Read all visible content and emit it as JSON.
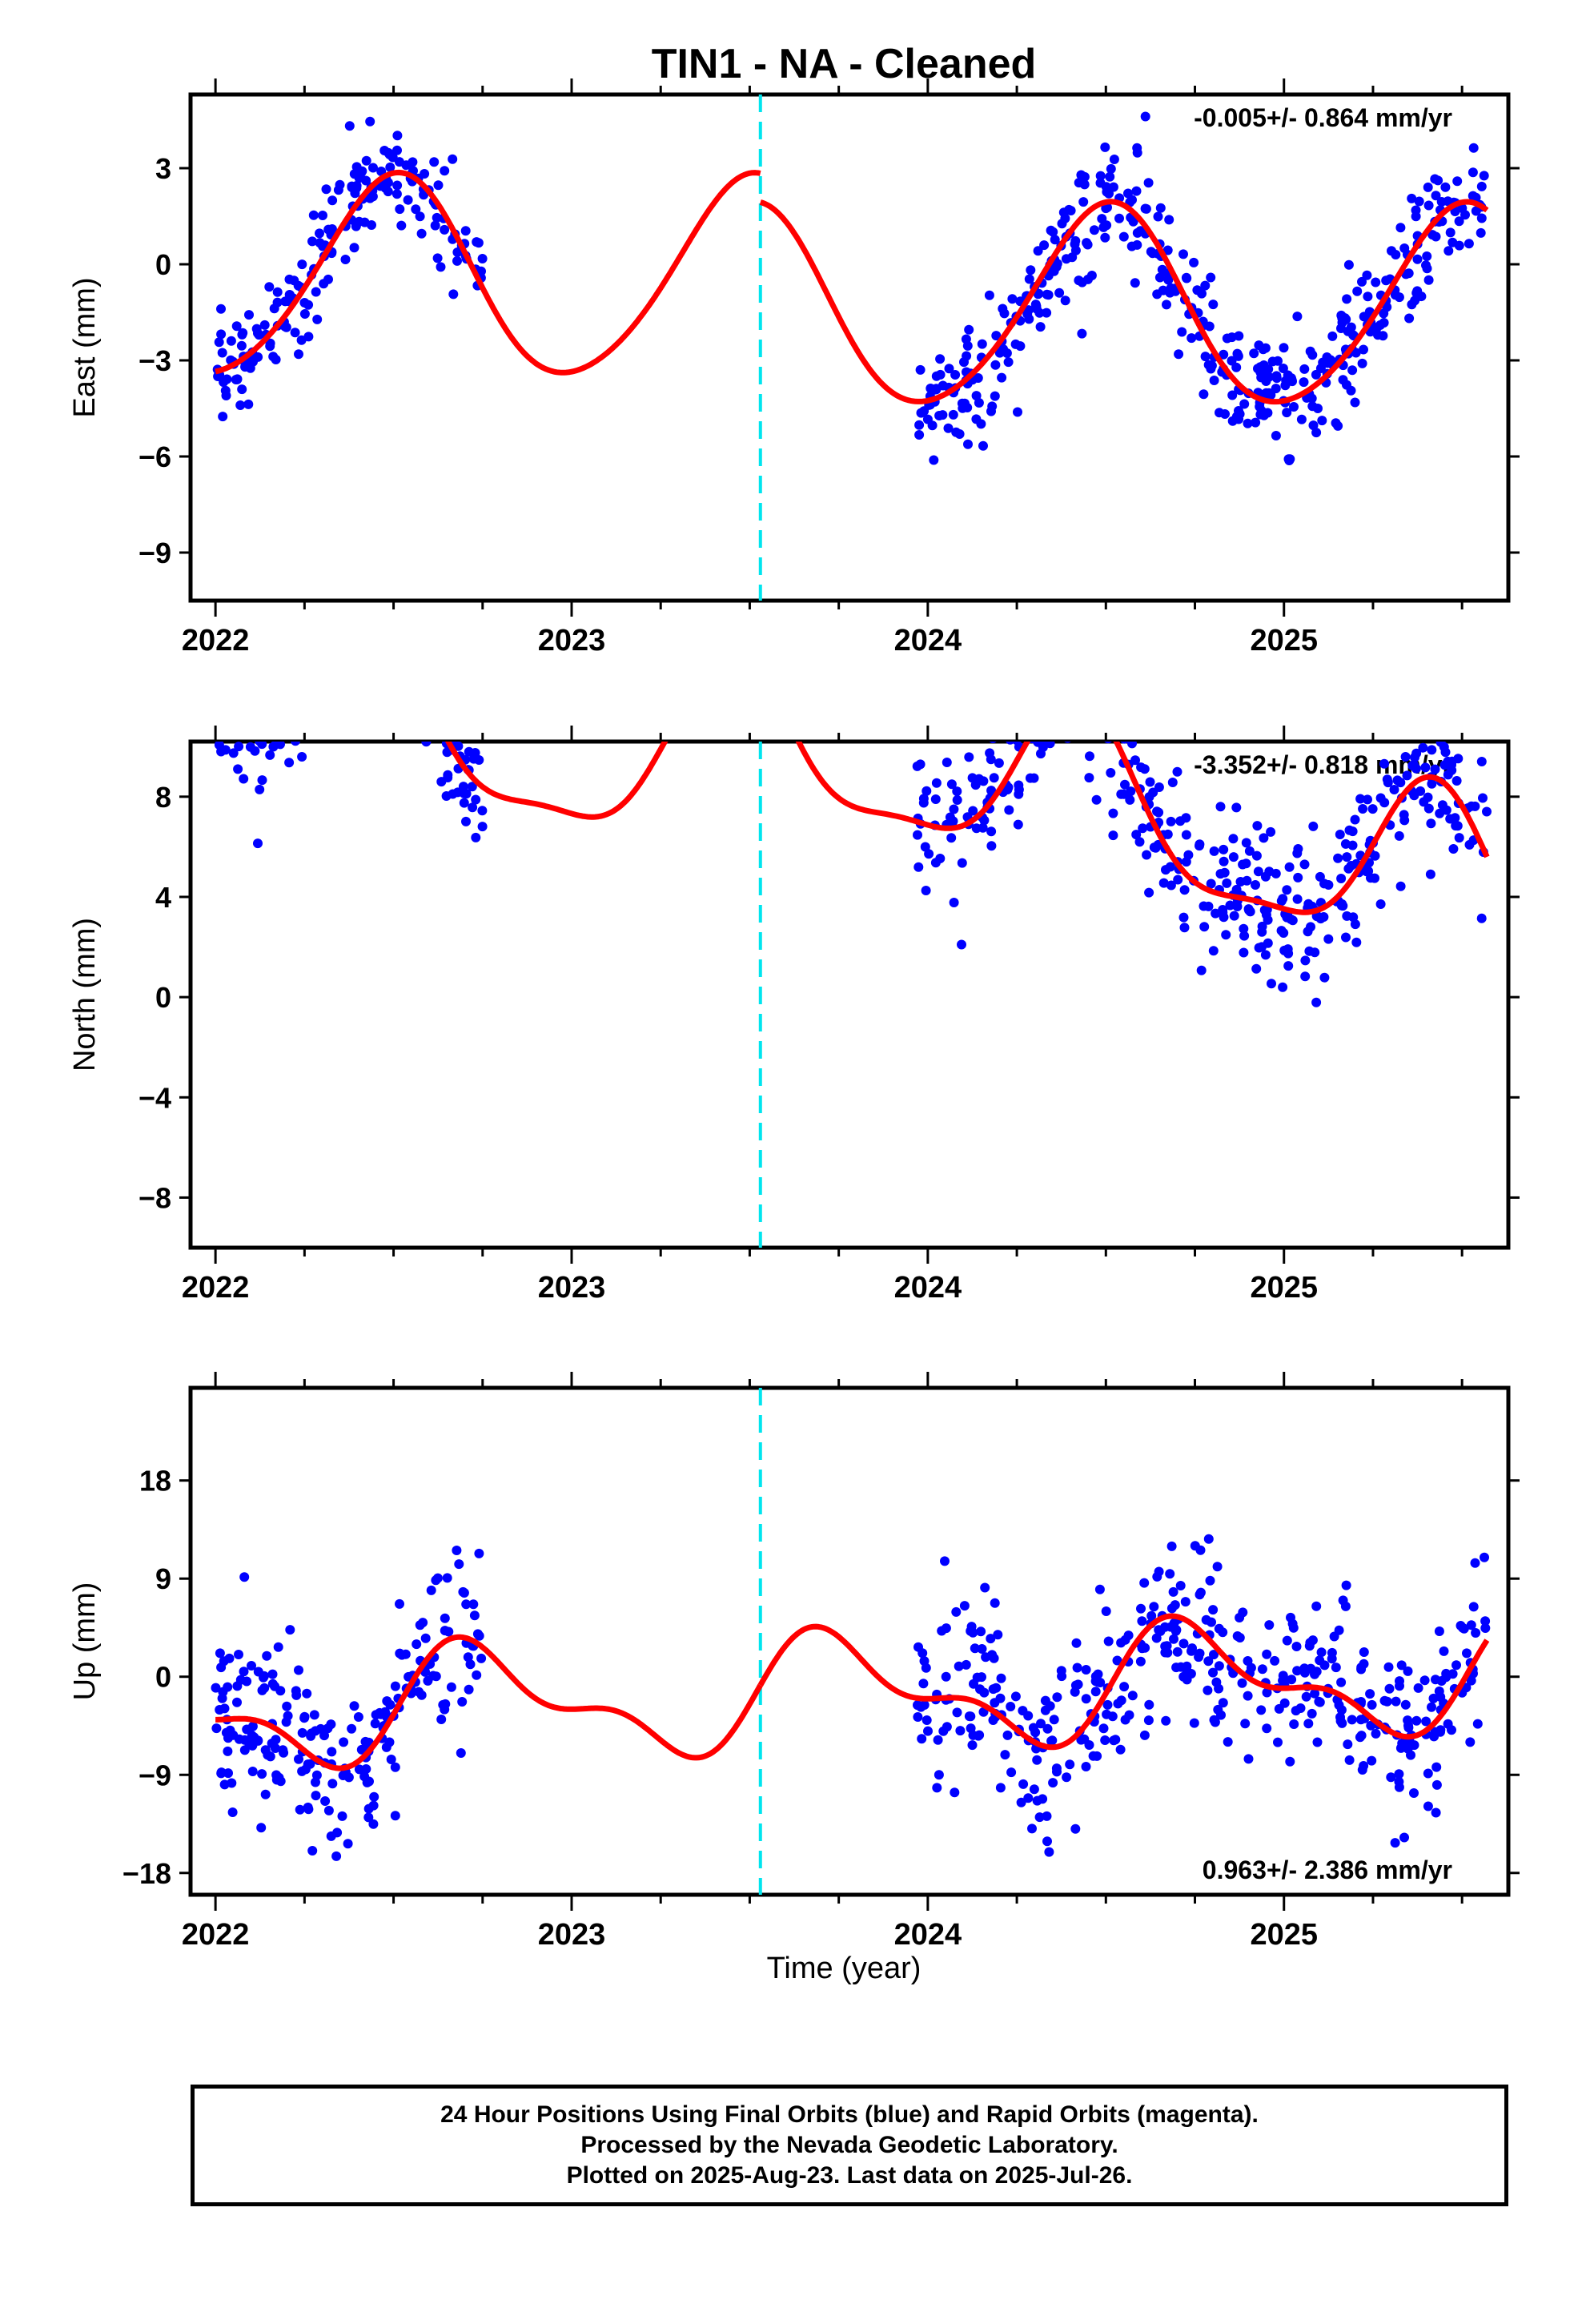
{
  "title": "TIN1  - NA - Cleaned",
  "xlabel": "Time (year)",
  "footer": {
    "line1": "24 Hour Positions Using Final Orbits (blue) and Rapid Orbits (magenta).",
    "line2": "Processed by the Nevada Geodetic Laboratory.",
    "line3": "Plotted on 2025-Aug-23. Last data on 2025-Jul-26."
  },
  "colors": {
    "points": "#0000ff",
    "model": "#ff0000",
    "break": "#00e5ee",
    "axes": "#000000"
  },
  "chart_data": [
    {
      "type": "scatter",
      "ylabel": "East (mm)",
      "rate": "-0.005+/- 0.864 mm/yr",
      "xlim": [
        2021.93,
        2025.63
      ],
      "ylim": [
        -10.5,
        5.3
      ],
      "yticks": [
        3,
        0,
        -3,
        -6,
        -9
      ],
      "xticks": [
        2022,
        2023,
        2024,
        2025
      ],
      "break_year": 2023.53,
      "gaps": [
        [
          2022.75,
          2023.97
        ]
      ],
      "model": {
        "offset": -0.5,
        "trend": -0.005,
        "annual_amp": 3.1,
        "annual_phase_year": 2022.5,
        "semi_amp": 0.3,
        "semi_phase_year": 2022.55,
        "break_jump": -0.9
      },
      "scatter_sigma": 0.9,
      "n_points_per_year": 260
    },
    {
      "type": "scatter",
      "ylabel": "North (mm)",
      "rate": "-3.352+/- 0.818 mm/yr",
      "xlim": [
        2021.93,
        2025.63
      ],
      "ylim": [
        -10,
        10.2
      ],
      "yticks": [
        8,
        4,
        0,
        -4,
        -8
      ],
      "xticks": [
        2022,
        2023,
        2024,
        2025
      ],
      "break_year": 2023.53,
      "gaps": [
        [
          2022.75,
          2023.97
        ]
      ],
      "model": {
        "offset": 7.0,
        "trend": -3.352,
        "annual_amp": 3.3,
        "annual_phase_year": 2022.42,
        "semi_amp": 1.0,
        "semi_phase_year": 2022.42,
        "break_jump": 2.9
      },
      "scatter_sigma": 1.4,
      "n_points_per_year": 260
    },
    {
      "type": "scatter",
      "ylabel": "Up (mm)",
      "rate": "0.963+/- 2.386 mm/yr",
      "xlim": [
        2021.93,
        2025.63
      ],
      "ylim": [
        -20,
        26.5
      ],
      "yticks": [
        18,
        9,
        0,
        -9,
        -18
      ],
      "xticks": [
        2022,
        2023,
        2024,
        2025
      ],
      "break_year": 2023.53,
      "gaps": [
        [
          2022.75,
          2023.97
        ]
      ],
      "model": {
        "offset": -1.5,
        "trend": 0.963,
        "annual_amp": 4.5,
        "annual_phase_year": 2022.75,
        "semi_amp": 2.3,
        "semi_phase_year": 2022.65,
        "break_jump": 0.0
      },
      "scatter_sigma": 4.0,
      "n_points_per_year": 260
    }
  ]
}
